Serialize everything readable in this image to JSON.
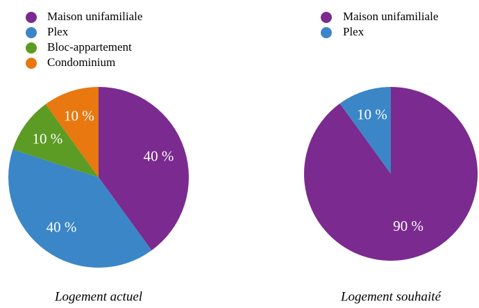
{
  "chart_data": [
    {
      "type": "pie",
      "title": "Logement actuel",
      "categories": [
        "Maison unifamiliale",
        "Plex",
        "Bloc-appartement",
        "Condominium"
      ],
      "values": [
        40,
        40,
        10,
        10
      ],
      "value_labels": [
        "40 %",
        "40 %",
        "10 %",
        "10 %"
      ],
      "colors": [
        "#7b2a8f",
        "#3b86c6",
        "#5c9c24",
        "#e8780f"
      ]
    },
    {
      "type": "pie",
      "title": "Logement souhaité",
      "categories": [
        "Maison unifamiliale",
        "Plex"
      ],
      "values": [
        90,
        10
      ],
      "value_labels": [
        "90 %",
        "10 %"
      ],
      "colors": [
        "#7b2a8f",
        "#3b86c6"
      ]
    }
  ]
}
